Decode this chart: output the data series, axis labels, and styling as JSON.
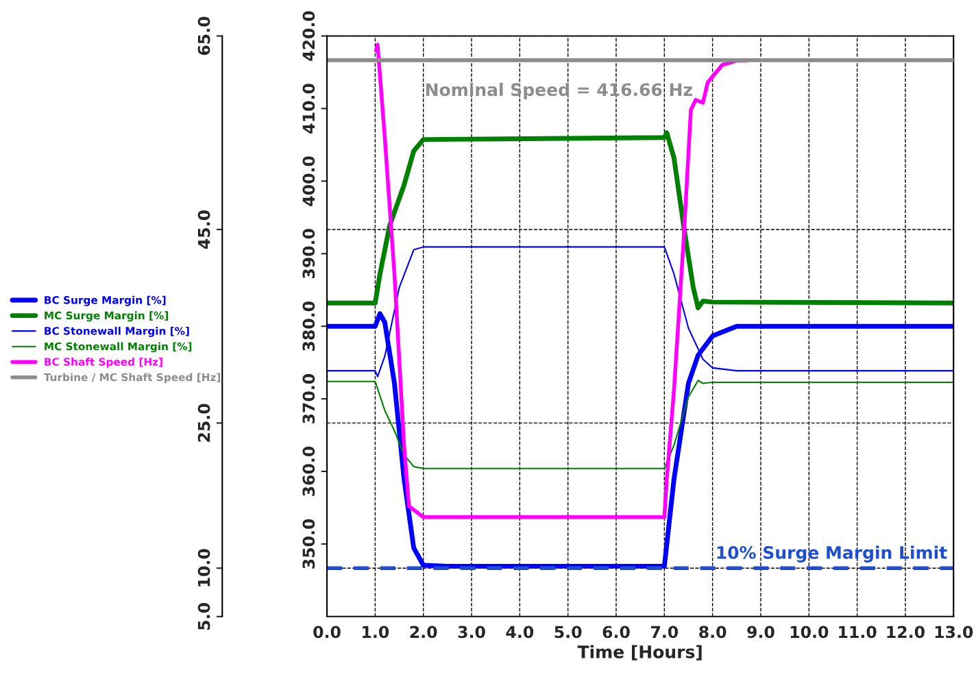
{
  "chart_data": {
    "type": "line",
    "xlabel": "Time [Hours]",
    "xlim": [
      0,
      13
    ],
    "xticks": [
      {
        "value": 0,
        "label": "0.0"
      },
      {
        "value": 1,
        "label": "1.0"
      },
      {
        "value": 2,
        "label": "2.0"
      },
      {
        "value": 3,
        "label": "3.0"
      },
      {
        "value": 4,
        "label": "4.0"
      },
      {
        "value": 5,
        "label": "5.0"
      },
      {
        "value": 6,
        "label": "6.0"
      },
      {
        "value": 7,
        "label": "7.0"
      },
      {
        "value": 8,
        "label": "8.0"
      },
      {
        "value": 9,
        "label": "9.0"
      },
      {
        "value": 10,
        "label": "10.0"
      },
      {
        "value": 11,
        "label": "11.0"
      },
      {
        "value": 12,
        "label": "12.0"
      },
      {
        "value": 13,
        "label": "13.0"
      }
    ],
    "ylim": [
      5,
      65
    ],
    "yticks": [
      {
        "value": 5,
        "label": "5.0"
      },
      {
        "value": 10,
        "label": "10.0"
      },
      {
        "value": 25,
        "label": "25.0"
      },
      {
        "value": 45,
        "label": "45.0"
      },
      {
        "value": 65,
        "label": "65.0"
      }
    ],
    "y2lim": [
      340,
      420
    ],
    "y2ticks": [
      {
        "value": 350,
        "label": "350.0"
      },
      {
        "value": 360,
        "label": "360.0"
      },
      {
        "value": 370,
        "label": "370.0"
      },
      {
        "value": 380,
        "label": "380.0"
      },
      {
        "value": 390,
        "label": "390.0"
      },
      {
        "value": 400,
        "label": "400.0"
      },
      {
        "value": 410,
        "label": "410.0"
      },
      {
        "value": 420,
        "label": "420.0"
      }
    ],
    "grid": true,
    "legend": "left",
    "line_style": "solid",
    "series": [
      {
        "name": "BC Surge Margin [%]",
        "color": "#0000ff",
        "x": [
          0,
          1.0,
          1.1,
          1.2,
          1.4,
          1.6,
          1.8,
          2.0,
          2.5,
          7.0,
          7.2,
          7.5,
          7.7,
          8.0,
          8.5,
          13
        ],
        "values": [
          35.0,
          35.0,
          36.3,
          35.4,
          29.1,
          19.2,
          12.1,
          10.3,
          10.2,
          10.2,
          19.2,
          29.1,
          32.0,
          34.0,
          35.0,
          35.0
        ]
      },
      {
        "name": "MC Surge Margin [%]",
        "color": "#008000",
        "x": [
          0,
          1.0,
          1.1,
          1.3,
          1.6,
          1.8,
          2.0,
          7.0,
          7.05,
          7.2,
          7.4,
          7.6,
          7.7,
          7.8,
          8.0,
          13
        ],
        "values": [
          37.4,
          37.4,
          40.4,
          45.4,
          49.6,
          53.1,
          54.3,
          54.5,
          55.0,
          52.4,
          45.4,
          39.0,
          36.9,
          37.6,
          37.5,
          37.4
        ]
      },
      {
        "name": "BC Stonewall Margin [%]",
        "color": "#0000ff",
        "x": [
          0,
          1.0,
          1.05,
          1.2,
          1.5,
          1.8,
          2.0,
          7.0,
          7.2,
          7.5,
          7.8,
          8.0,
          8.5,
          13
        ],
        "values": [
          30.4,
          30.4,
          29.8,
          31.9,
          39.0,
          42.9,
          43.2,
          43.2,
          40.4,
          34.8,
          31.6,
          30.7,
          30.4,
          30.4
        ]
      },
      {
        "name": "MC Stonewall Margin [%]",
        "color": "#008000",
        "x": [
          0,
          1.0,
          1.2,
          1.4,
          1.6,
          1.8,
          2.0,
          7.0,
          7.2,
          7.5,
          7.7,
          7.8,
          8.0,
          13
        ],
        "values": [
          29.3,
          29.3,
          26.3,
          24.2,
          21.7,
          20.5,
          20.3,
          20.3,
          22.7,
          27.7,
          29.4,
          29.1,
          29.2,
          29.2
        ]
      },
      {
        "name": "BC Shaft Speed [Hz]",
        "color": "#ff00ff",
        "axis": "y2",
        "x": [
          1.02,
          1.05,
          1.2,
          1.4,
          1.6,
          1.7,
          2.0,
          7.0,
          7.05,
          7.2,
          7.4,
          7.55,
          7.65,
          7.8,
          7.9,
          8.2,
          8.5,
          8.7
        ],
        "values": [
          418.0,
          418.8,
          406.0,
          387.2,
          363.6,
          355.2,
          353.7,
          353.7,
          358.9,
          371.2,
          391.9,
          409.8,
          411.2,
          410.8,
          413.6,
          416.0,
          416.6,
          416.6
        ]
      },
      {
        "name": "Turbine / MC Shaft Speed [Hz]",
        "color": "#8c8c8c",
        "axis": "y2",
        "x": [
          0,
          13
        ],
        "values": [
          416.66,
          416.66
        ]
      }
    ],
    "ref_lines": [
      {
        "axis": "y",
        "value": 10,
        "label": "10% Surge Margin Limit",
        "color": "#1f4fd0",
        "line_style": "dashed"
      }
    ],
    "annotations": [
      "Nominal Speed = 416.66 Hz"
    ]
  }
}
